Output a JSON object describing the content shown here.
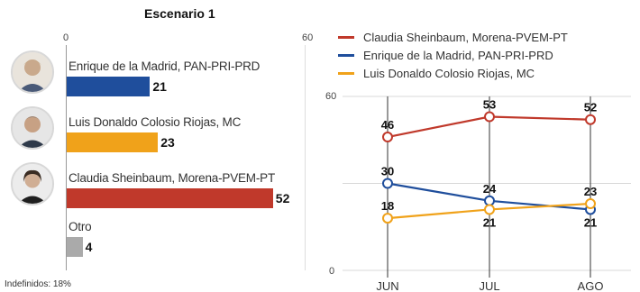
{
  "bar_panel": {
    "title": "Escenario 1",
    "axis_min_label": "0",
    "axis_max_label": "60",
    "footnote": "Indefinidos: 18%",
    "avatars": [
      {
        "icon": "person-photo-icon"
      },
      {
        "icon": "person-photo-icon"
      },
      {
        "icon": "person-photo-icon"
      }
    ]
  },
  "legend": [
    {
      "label": "Claudia Sheinbaum, Morena-PVEM-PT",
      "color": "#c0392b"
    },
    {
      "label": "Enrique de la Madrid, PAN-PRI-PRD",
      "color": "#1f4e9c"
    },
    {
      "label": "Luis Donaldo Colosio Riojas, MC",
      "color": "#f0a21a"
    }
  ],
  "line_panel": {
    "y_max_label": "60",
    "y_min_label": "0"
  },
  "chart_data": [
    {
      "type": "bar",
      "title": "Escenario 1",
      "categories": [
        "Enrique de la Madrid, PAN-PRI-PRD",
        "Luis Donaldo Colosio Riojas, MC",
        "Claudia Sheinbaum, Morena-PVEM-PT",
        "Otro"
      ],
      "values": [
        21,
        23,
        52,
        4
      ],
      "colors": [
        "#1f4e9c",
        "#f0a21a",
        "#c0392b",
        "#aaaaaa"
      ],
      "value_labels": [
        "21",
        "23",
        "52",
        "4"
      ],
      "xlim": [
        0,
        60
      ]
    },
    {
      "type": "line",
      "x": [
        "JUN",
        "JUL",
        "AGO"
      ],
      "ylim": [
        0,
        60
      ],
      "grid": true,
      "legend_position": "top",
      "series": [
        {
          "name": "Claudia Sheinbaum, Morena-PVEM-PT",
          "color": "#c0392b",
          "values": [
            46,
            53,
            52
          ],
          "labels": [
            "46",
            "53",
            "52"
          ],
          "label_pos": [
            "above",
            "above",
            "above"
          ]
        },
        {
          "name": "Enrique de la Madrid, PAN-PRI-PRD",
          "color": "#1f4e9c",
          "values": [
            30,
            24,
            21
          ],
          "labels": [
            "30",
            "24",
            "21"
          ],
          "label_pos": [
            "above",
            "above",
            "below"
          ]
        },
        {
          "name": "Luis Donaldo Colosio Riojas, MC",
          "color": "#f0a21a",
          "values": [
            18,
            21,
            23
          ],
          "labels": [
            "18",
            "21",
            "23"
          ],
          "label_pos": [
            "above",
            "below",
            "above"
          ]
        }
      ]
    }
  ]
}
